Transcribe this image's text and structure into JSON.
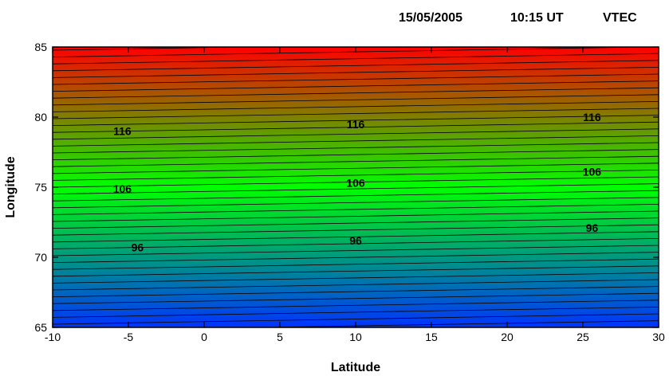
{
  "header": {
    "date": "15/05/2005",
    "time": "10:15 UT",
    "quantity": "VTEC"
  },
  "chart_data": {
    "type": "heatmap",
    "xlabel": "Latitude",
    "ylabel": "Longitude",
    "xlim": [
      -10,
      30
    ],
    "ylim": [
      65,
      85
    ],
    "xticks": [
      -10,
      -5,
      0,
      5,
      10,
      15,
      20,
      25,
      30
    ],
    "xtick_labels": [
      "-10",
      "-5",
      "0",
      "5",
      "10",
      "15",
      "20",
      "25",
      "30"
    ],
    "yticks": [
      65,
      70,
      75,
      80,
      85
    ],
    "ytick_labels": [
      "65",
      "70",
      "75",
      "80",
      "85"
    ],
    "colormap": [
      "#0033ff",
      "#00ff00",
      "#ff0000"
    ],
    "contour_labels": [
      {
        "text": "116",
        "x": -5.4,
        "y": 79.0
      },
      {
        "text": "116",
        "x": 10.0,
        "y": 79.5
      },
      {
        "text": "116",
        "x": 25.6,
        "y": 80.0
      },
      {
        "text": "106",
        "x": -5.4,
        "y": 74.9
      },
      {
        "text": "106",
        "x": 10.0,
        "y": 75.3
      },
      {
        "text": "106",
        "x": 25.6,
        "y": 76.1
      },
      {
        "text": "96",
        "x": -4.4,
        "y": 70.7
      },
      {
        "text": "96",
        "x": 10.0,
        "y": 71.2
      },
      {
        "text": "96",
        "x": 25.6,
        "y": 72.1
      }
    ],
    "grid": false,
    "legend": "none"
  }
}
